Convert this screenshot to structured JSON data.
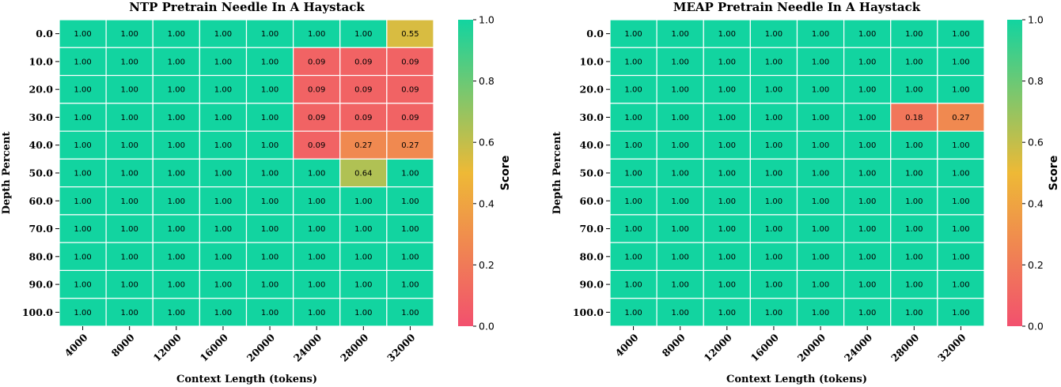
{
  "colors": {
    "low": "#f2506e",
    "mid": "#eeb936",
    "high": "#12d4a0",
    "gridline": "#ffffff"
  },
  "chart_data": [
    {
      "type": "heatmap",
      "title": "NTP Pretrain Needle In A Haystack",
      "xlabel": "Context Length (tokens)",
      "ylabel": "Depth Percent",
      "colorbar_label": "Score",
      "x": [
        "4000",
        "8000",
        "12000",
        "16000",
        "20000",
        "24000",
        "28000",
        "32000"
      ],
      "y": [
        "0.0",
        "10.0",
        "20.0",
        "30.0",
        "40.0",
        "50.0",
        "60.0",
        "70.0",
        "80.0",
        "90.0",
        "100.0"
      ],
      "vmin": 0.0,
      "vmax": 1.0,
      "colorbar_ticks": [
        "0.0",
        "0.2",
        "0.4",
        "0.6",
        "0.8",
        "1.0"
      ],
      "values": [
        [
          1.0,
          1.0,
          1.0,
          1.0,
          1.0,
          1.0,
          1.0,
          0.55
        ],
        [
          1.0,
          1.0,
          1.0,
          1.0,
          1.0,
          0.09,
          0.09,
          0.09
        ],
        [
          1.0,
          1.0,
          1.0,
          1.0,
          1.0,
          0.09,
          0.09,
          0.09
        ],
        [
          1.0,
          1.0,
          1.0,
          1.0,
          1.0,
          0.09,
          0.09,
          0.09
        ],
        [
          1.0,
          1.0,
          1.0,
          1.0,
          1.0,
          0.09,
          0.27,
          0.27
        ],
        [
          1.0,
          1.0,
          1.0,
          1.0,
          1.0,
          1.0,
          0.64,
          1.0
        ],
        [
          1.0,
          1.0,
          1.0,
          1.0,
          1.0,
          1.0,
          1.0,
          1.0
        ],
        [
          1.0,
          1.0,
          1.0,
          1.0,
          1.0,
          1.0,
          1.0,
          1.0
        ],
        [
          1.0,
          1.0,
          1.0,
          1.0,
          1.0,
          1.0,
          1.0,
          1.0
        ],
        [
          1.0,
          1.0,
          1.0,
          1.0,
          1.0,
          1.0,
          1.0,
          1.0
        ],
        [
          1.0,
          1.0,
          1.0,
          1.0,
          1.0,
          1.0,
          1.0,
          1.0
        ]
      ]
    },
    {
      "type": "heatmap",
      "title": "MEAP Pretrain Needle In A Haystack",
      "xlabel": "Context Length (tokens)",
      "ylabel": "Depth Percent",
      "colorbar_label": "Score",
      "x": [
        "4000",
        "8000",
        "12000",
        "16000",
        "20000",
        "24000",
        "28000",
        "32000"
      ],
      "y": [
        "0.0",
        "10.0",
        "20.0",
        "30.0",
        "40.0",
        "50.0",
        "60.0",
        "70.0",
        "80.0",
        "90.0",
        "100.0"
      ],
      "vmin": 0.0,
      "vmax": 1.0,
      "colorbar_ticks": [
        "0.0",
        "0.2",
        "0.4",
        "0.6",
        "0.8",
        "1.0"
      ],
      "values": [
        [
          1.0,
          1.0,
          1.0,
          1.0,
          1.0,
          1.0,
          1.0,
          1.0
        ],
        [
          1.0,
          1.0,
          1.0,
          1.0,
          1.0,
          1.0,
          1.0,
          1.0
        ],
        [
          1.0,
          1.0,
          1.0,
          1.0,
          1.0,
          1.0,
          1.0,
          1.0
        ],
        [
          1.0,
          1.0,
          1.0,
          1.0,
          1.0,
          1.0,
          0.18,
          0.27
        ],
        [
          1.0,
          1.0,
          1.0,
          1.0,
          1.0,
          1.0,
          1.0,
          1.0
        ],
        [
          1.0,
          1.0,
          1.0,
          1.0,
          1.0,
          1.0,
          1.0,
          1.0
        ],
        [
          1.0,
          1.0,
          1.0,
          1.0,
          1.0,
          1.0,
          1.0,
          1.0
        ],
        [
          1.0,
          1.0,
          1.0,
          1.0,
          1.0,
          1.0,
          1.0,
          1.0
        ],
        [
          1.0,
          1.0,
          1.0,
          1.0,
          1.0,
          1.0,
          1.0,
          1.0
        ],
        [
          1.0,
          1.0,
          1.0,
          1.0,
          1.0,
          1.0,
          1.0,
          1.0
        ],
        [
          1.0,
          1.0,
          1.0,
          1.0,
          1.0,
          1.0,
          1.0,
          1.0
        ]
      ]
    }
  ]
}
